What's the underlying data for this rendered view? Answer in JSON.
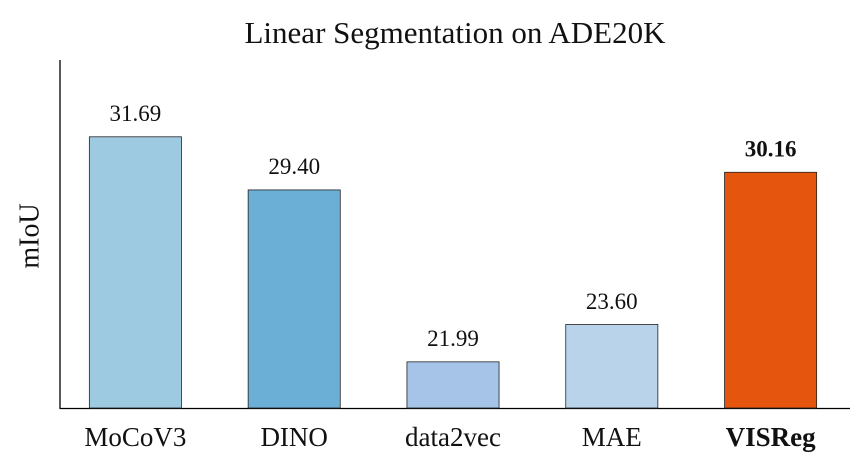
{
  "chart_data": {
    "type": "bar",
    "title": "Linear Segmentation on ADE20K",
    "y_label": "mIoU",
    "categories": [
      "MoCoV3",
      "DINO",
      "data2vec",
      "MAE",
      "VISReg"
    ],
    "values": [
      31.69,
      29.4,
      21.99,
      23.6,
      30.16
    ],
    "value_labels": [
      "31.69",
      "29.40",
      "21.99",
      "23.60",
      "30.16"
    ],
    "colors": [
      "#9ecae1",
      "#6baed6",
      "#a6c4e8",
      "#b9d4ea",
      "#e6550d"
    ],
    "highlight_index": 4,
    "ylim": [
      20,
      35
    ]
  }
}
